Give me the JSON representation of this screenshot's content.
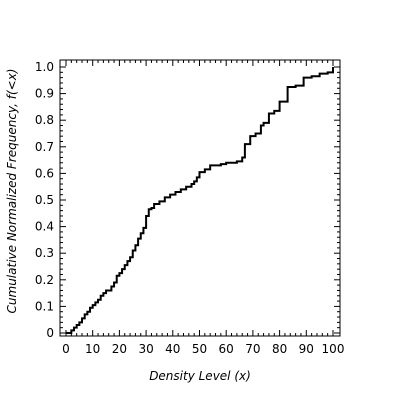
{
  "chart_data": {
    "type": "line",
    "step": true,
    "title": "",
    "xlabel": "Density Level (x)",
    "ylabel": "Cumulative Normalized Frequency, f(<x)",
    "xlim": [
      0,
      100
    ],
    "ylim": [
      0,
      1.0
    ],
    "x_ticks": [
      "0",
      "10",
      "20",
      "30",
      "40",
      "50",
      "60",
      "70",
      "80",
      "90",
      "100"
    ],
    "y_ticks": [
      "0",
      "0.1",
      "0.2",
      "0.3",
      "0.4",
      "0.5",
      "0.6",
      "0.7",
      "0.8",
      "0.9",
      "1.0"
    ],
    "grid": false,
    "legend": "none",
    "line_color": "#000000",
    "series": [
      {
        "x": [
          0,
          2,
          3,
          4,
          5,
          6,
          7,
          8,
          9,
          10,
          11,
          12,
          13,
          14,
          15,
          17,
          18,
          19,
          20,
          21,
          22,
          23,
          24,
          25,
          26,
          27,
          28,
          29,
          30,
          31,
          32,
          33,
          35,
          37,
          39,
          41,
          43,
          45,
          47,
          48,
          49,
          50,
          52,
          54,
          56,
          58,
          60,
          62,
          64,
          66,
          67,
          69,
          71,
          73,
          74,
          76,
          78,
          80,
          83,
          86,
          89,
          92,
          95,
          98,
          100
        ],
        "y": [
          0,
          0.01,
          0.02,
          0.03,
          0.04,
          0.055,
          0.07,
          0.08,
          0.095,
          0.105,
          0.115,
          0.125,
          0.14,
          0.15,
          0.16,
          0.175,
          0.19,
          0.215,
          0.225,
          0.24,
          0.255,
          0.27,
          0.285,
          0.31,
          0.33,
          0.355,
          0.375,
          0.395,
          0.44,
          0.465,
          0.47,
          0.485,
          0.495,
          0.51,
          0.52,
          0.53,
          0.54,
          0.55,
          0.56,
          0.57,
          0.585,
          0.605,
          0.615,
          0.63,
          0.63,
          0.635,
          0.64,
          0.64,
          0.645,
          0.66,
          0.71,
          0.74,
          0.75,
          0.78,
          0.79,
          0.825,
          0.835,
          0.87,
          0.925,
          0.93,
          0.96,
          0.965,
          0.975,
          0.98,
          1.0
        ]
      }
    ]
  }
}
